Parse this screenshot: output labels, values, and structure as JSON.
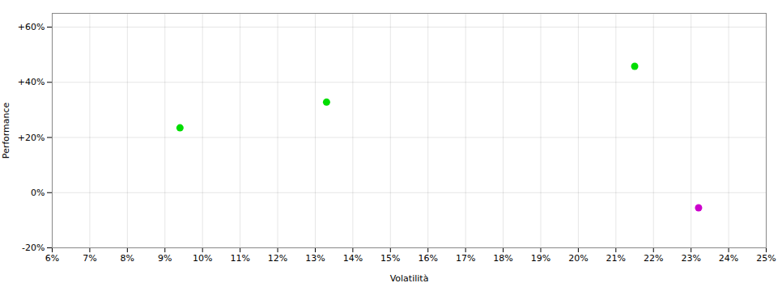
{
  "chart_data": {
    "type": "scatter",
    "xlabel": "Volatilità",
    "ylabel": "Performance",
    "x": [
      0.094,
      0.133,
      0.215,
      0.232
    ],
    "y": [
      0.235,
      0.328,
      0.458,
      -0.055
    ],
    "colors": [
      "#00dd00",
      "#00dd00",
      "#00dd00",
      "#cc00cc"
    ],
    "xlim": [
      0.06,
      0.25
    ],
    "ylim": [
      -0.2,
      0.65
    ],
    "xticks": [
      {
        "value": 0.06,
        "label": "6%"
      },
      {
        "value": 0.07,
        "label": "7%"
      },
      {
        "value": 0.08,
        "label": "8%"
      },
      {
        "value": 0.09,
        "label": "9%"
      },
      {
        "value": 0.1,
        "label": "10%"
      },
      {
        "value": 0.11,
        "label": "11%"
      },
      {
        "value": 0.12,
        "label": "12%"
      },
      {
        "value": 0.13,
        "label": "13%"
      },
      {
        "value": 0.14,
        "label": "14%"
      },
      {
        "value": 0.15,
        "label": "15%"
      },
      {
        "value": 0.16,
        "label": "16%"
      },
      {
        "value": 0.17,
        "label": "17%"
      },
      {
        "value": 0.18,
        "label": "18%"
      },
      {
        "value": 0.19,
        "label": "19%"
      },
      {
        "value": 0.2,
        "label": "20%"
      },
      {
        "value": 0.21,
        "label": "21%"
      },
      {
        "value": 0.22,
        "label": "22%"
      },
      {
        "value": 0.23,
        "label": "23%"
      },
      {
        "value": 0.24,
        "label": "24%"
      },
      {
        "value": 0.25,
        "label": "25%"
      }
    ],
    "yticks": [
      {
        "value": -0.2,
        "label": "-20%"
      },
      {
        "value": 0.0,
        "label": "0%"
      },
      {
        "value": 0.2,
        "label": "+20%"
      },
      {
        "value": 0.4,
        "label": "+40%"
      },
      {
        "value": 0.6,
        "label": "+60%"
      }
    ],
    "grid": true
  }
}
